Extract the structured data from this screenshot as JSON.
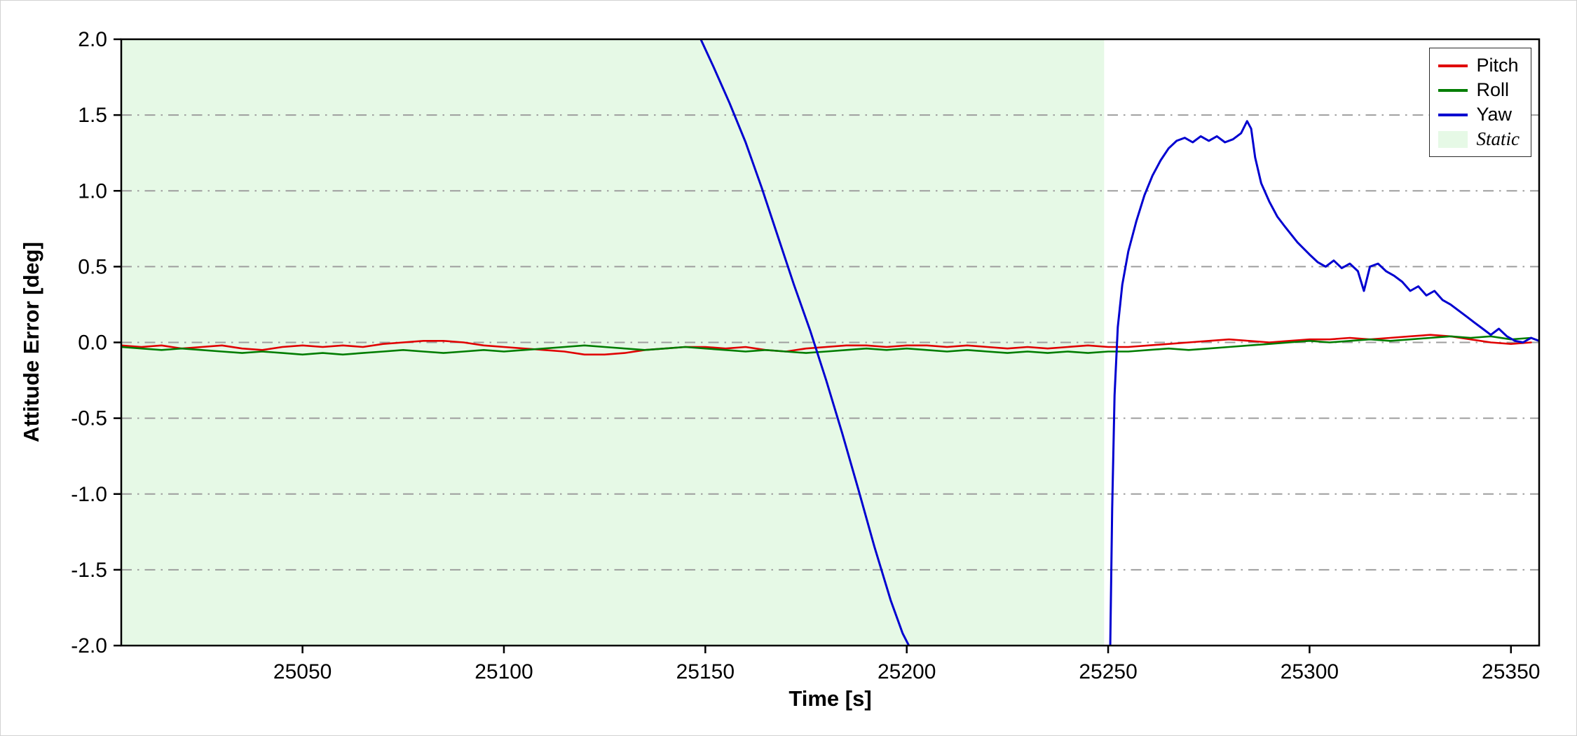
{
  "figure": {
    "background": "#ffffff",
    "border_color": "#d2d2d2"
  },
  "chart_data": {
    "type": "line",
    "title": "",
    "xlabel": "Time [s]",
    "ylabel": "Attitude Error [deg]",
    "xlim": [
      25005,
      25357
    ],
    "ylim": [
      -2.0,
      2.0
    ],
    "x_ticks": [
      25050,
      25100,
      25150,
      25200,
      25250,
      25300,
      25350
    ],
    "x_tick_labels": [
      "25050",
      "25100",
      "25150",
      "25200",
      "25250",
      "25300",
      "25350"
    ],
    "y_ticks": [
      -2.0,
      -1.5,
      -1.0,
      -0.5,
      0.0,
      0.5,
      1.0,
      1.5,
      2.0
    ],
    "y_tick_labels": [
      "-2.0",
      "-1.5",
      "-1.0",
      "-0.5",
      "0.0",
      "0.5",
      "1.0",
      "1.5",
      "2.0"
    ],
    "grid": {
      "axis": "y",
      "style": "dash-dot",
      "color": "#9e9e9e",
      "exclude": [
        -2.0,
        2.0
      ]
    },
    "static_region": {
      "label": "Static",
      "x_start": 25005,
      "x_end": 25249,
      "color": "#e6f9e6"
    },
    "legend": {
      "position": "upper-right",
      "entries": [
        "Pitch",
        "Roll",
        "Yaw",
        "Static"
      ]
    },
    "series": [
      {
        "name": "Pitch",
        "color": "#e00000",
        "x_start": 25005,
        "x_step": 5,
        "values": [
          -0.02,
          -0.03,
          -0.02,
          -0.04,
          -0.03,
          -0.02,
          -0.04,
          -0.05,
          -0.03,
          -0.02,
          -0.03,
          -0.02,
          -0.03,
          -0.01,
          0.0,
          0.01,
          0.01,
          0.0,
          -0.02,
          -0.03,
          -0.04,
          -0.05,
          -0.06,
          -0.08,
          -0.08,
          -0.07,
          -0.05,
          -0.04,
          -0.03,
          -0.03,
          -0.04,
          -0.03,
          -0.05,
          -0.06,
          -0.04,
          -0.03,
          -0.02,
          -0.02,
          -0.03,
          -0.02,
          -0.02,
          -0.03,
          -0.02,
          -0.03,
          -0.04,
          -0.03,
          -0.04,
          -0.03,
          -0.02,
          -0.03,
          -0.03,
          -0.02,
          -0.01,
          0.0,
          0.01,
          0.02,
          0.01,
          0.0,
          0.01,
          0.02,
          0.02,
          0.03,
          0.02,
          0.03,
          0.04,
          0.05,
          0.04,
          0.02,
          0.0,
          -0.01,
          0.0
        ]
      },
      {
        "name": "Roll",
        "color": "#007d00",
        "x_start": 25005,
        "x_step": 5,
        "values": [
          -0.03,
          -0.04,
          -0.05,
          -0.04,
          -0.05,
          -0.06,
          -0.07,
          -0.06,
          -0.07,
          -0.08,
          -0.07,
          -0.08,
          -0.07,
          -0.06,
          -0.05,
          -0.06,
          -0.07,
          -0.06,
          -0.05,
          -0.06,
          -0.05,
          -0.04,
          -0.03,
          -0.02,
          -0.03,
          -0.04,
          -0.05,
          -0.04,
          -0.03,
          -0.04,
          -0.05,
          -0.06,
          -0.05,
          -0.06,
          -0.07,
          -0.06,
          -0.05,
          -0.04,
          -0.05,
          -0.04,
          -0.05,
          -0.06,
          -0.05,
          -0.06,
          -0.07,
          -0.06,
          -0.07,
          -0.06,
          -0.07,
          -0.06,
          -0.06,
          -0.05,
          -0.04,
          -0.05,
          -0.04,
          -0.03,
          -0.02,
          -0.01,
          0.0,
          0.01,
          0.0,
          0.01,
          0.02,
          0.01,
          0.02,
          0.03,
          0.04,
          0.03,
          0.04,
          0.02,
          0.03
        ]
      },
      {
        "name": "Yaw",
        "color": "#0000d0",
        "segments": [
          [
            [
              25148,
              2.05
            ],
            [
              25152,
              1.82
            ],
            [
              25156,
              1.58
            ],
            [
              25160,
              1.32
            ],
            [
              25164,
              1.02
            ],
            [
              25168,
              0.7
            ],
            [
              25172,
              0.38
            ],
            [
              25176,
              0.08
            ],
            [
              25180,
              -0.25
            ],
            [
              25184,
              -0.6
            ],
            [
              25188,
              -0.97
            ],
            [
              25192,
              -1.35
            ],
            [
              25196,
              -1.7
            ],
            [
              25199,
              -1.92
            ],
            [
              25201.5,
              -2.05
            ]
          ],
          [
            [
              25250.5,
              -2.05
            ],
            [
              25251,
              -1.1
            ],
            [
              25251.6,
              -0.35
            ],
            [
              25252.4,
              0.1
            ],
            [
              25253.5,
              0.38
            ],
            [
              25255,
              0.6
            ],
            [
              25257,
              0.8
            ],
            [
              25259,
              0.97
            ],
            [
              25261,
              1.1
            ],
            [
              25263,
              1.2
            ],
            [
              25265,
              1.28
            ],
            [
              25267,
              1.33
            ],
            [
              25269,
              1.35
            ],
            [
              25271,
              1.32
            ],
            [
              25273,
              1.36
            ],
            [
              25275,
              1.33
            ],
            [
              25277,
              1.36
            ],
            [
              25279,
              1.32
            ],
            [
              25281,
              1.34
            ],
            [
              25283,
              1.38
            ],
            [
              25284.5,
              1.46
            ],
            [
              25285.5,
              1.41
            ],
            [
              25286.5,
              1.22
            ],
            [
              25288,
              1.05
            ],
            [
              25290,
              0.93
            ],
            [
              25292,
              0.83
            ],
            [
              25294,
              0.76
            ],
            [
              25297,
              0.66
            ],
            [
              25300,
              0.58
            ],
            [
              25302,
              0.53
            ],
            [
              25304,
              0.5
            ],
            [
              25306,
              0.54
            ],
            [
              25308,
              0.49
            ],
            [
              25310,
              0.52
            ],
            [
              25312,
              0.47
            ],
            [
              25313.5,
              0.34
            ],
            [
              25315,
              0.5
            ],
            [
              25317,
              0.52
            ],
            [
              25319,
              0.47
            ],
            [
              25321,
              0.44
            ],
            [
              25323,
              0.4
            ],
            [
              25325,
              0.34
            ],
            [
              25327,
              0.37
            ],
            [
              25329,
              0.31
            ],
            [
              25331,
              0.34
            ],
            [
              25333,
              0.28
            ],
            [
              25335,
              0.25
            ],
            [
              25337,
              0.21
            ],
            [
              25339,
              0.17
            ],
            [
              25341,
              0.13
            ],
            [
              25343,
              0.09
            ],
            [
              25345,
              0.05
            ],
            [
              25347,
              0.09
            ],
            [
              25349,
              0.04
            ],
            [
              25351,
              0.01
            ],
            [
              25353,
              0.0
            ],
            [
              25355,
              0.03
            ],
            [
              25357,
              0.01
            ]
          ]
        ]
      }
    ]
  }
}
